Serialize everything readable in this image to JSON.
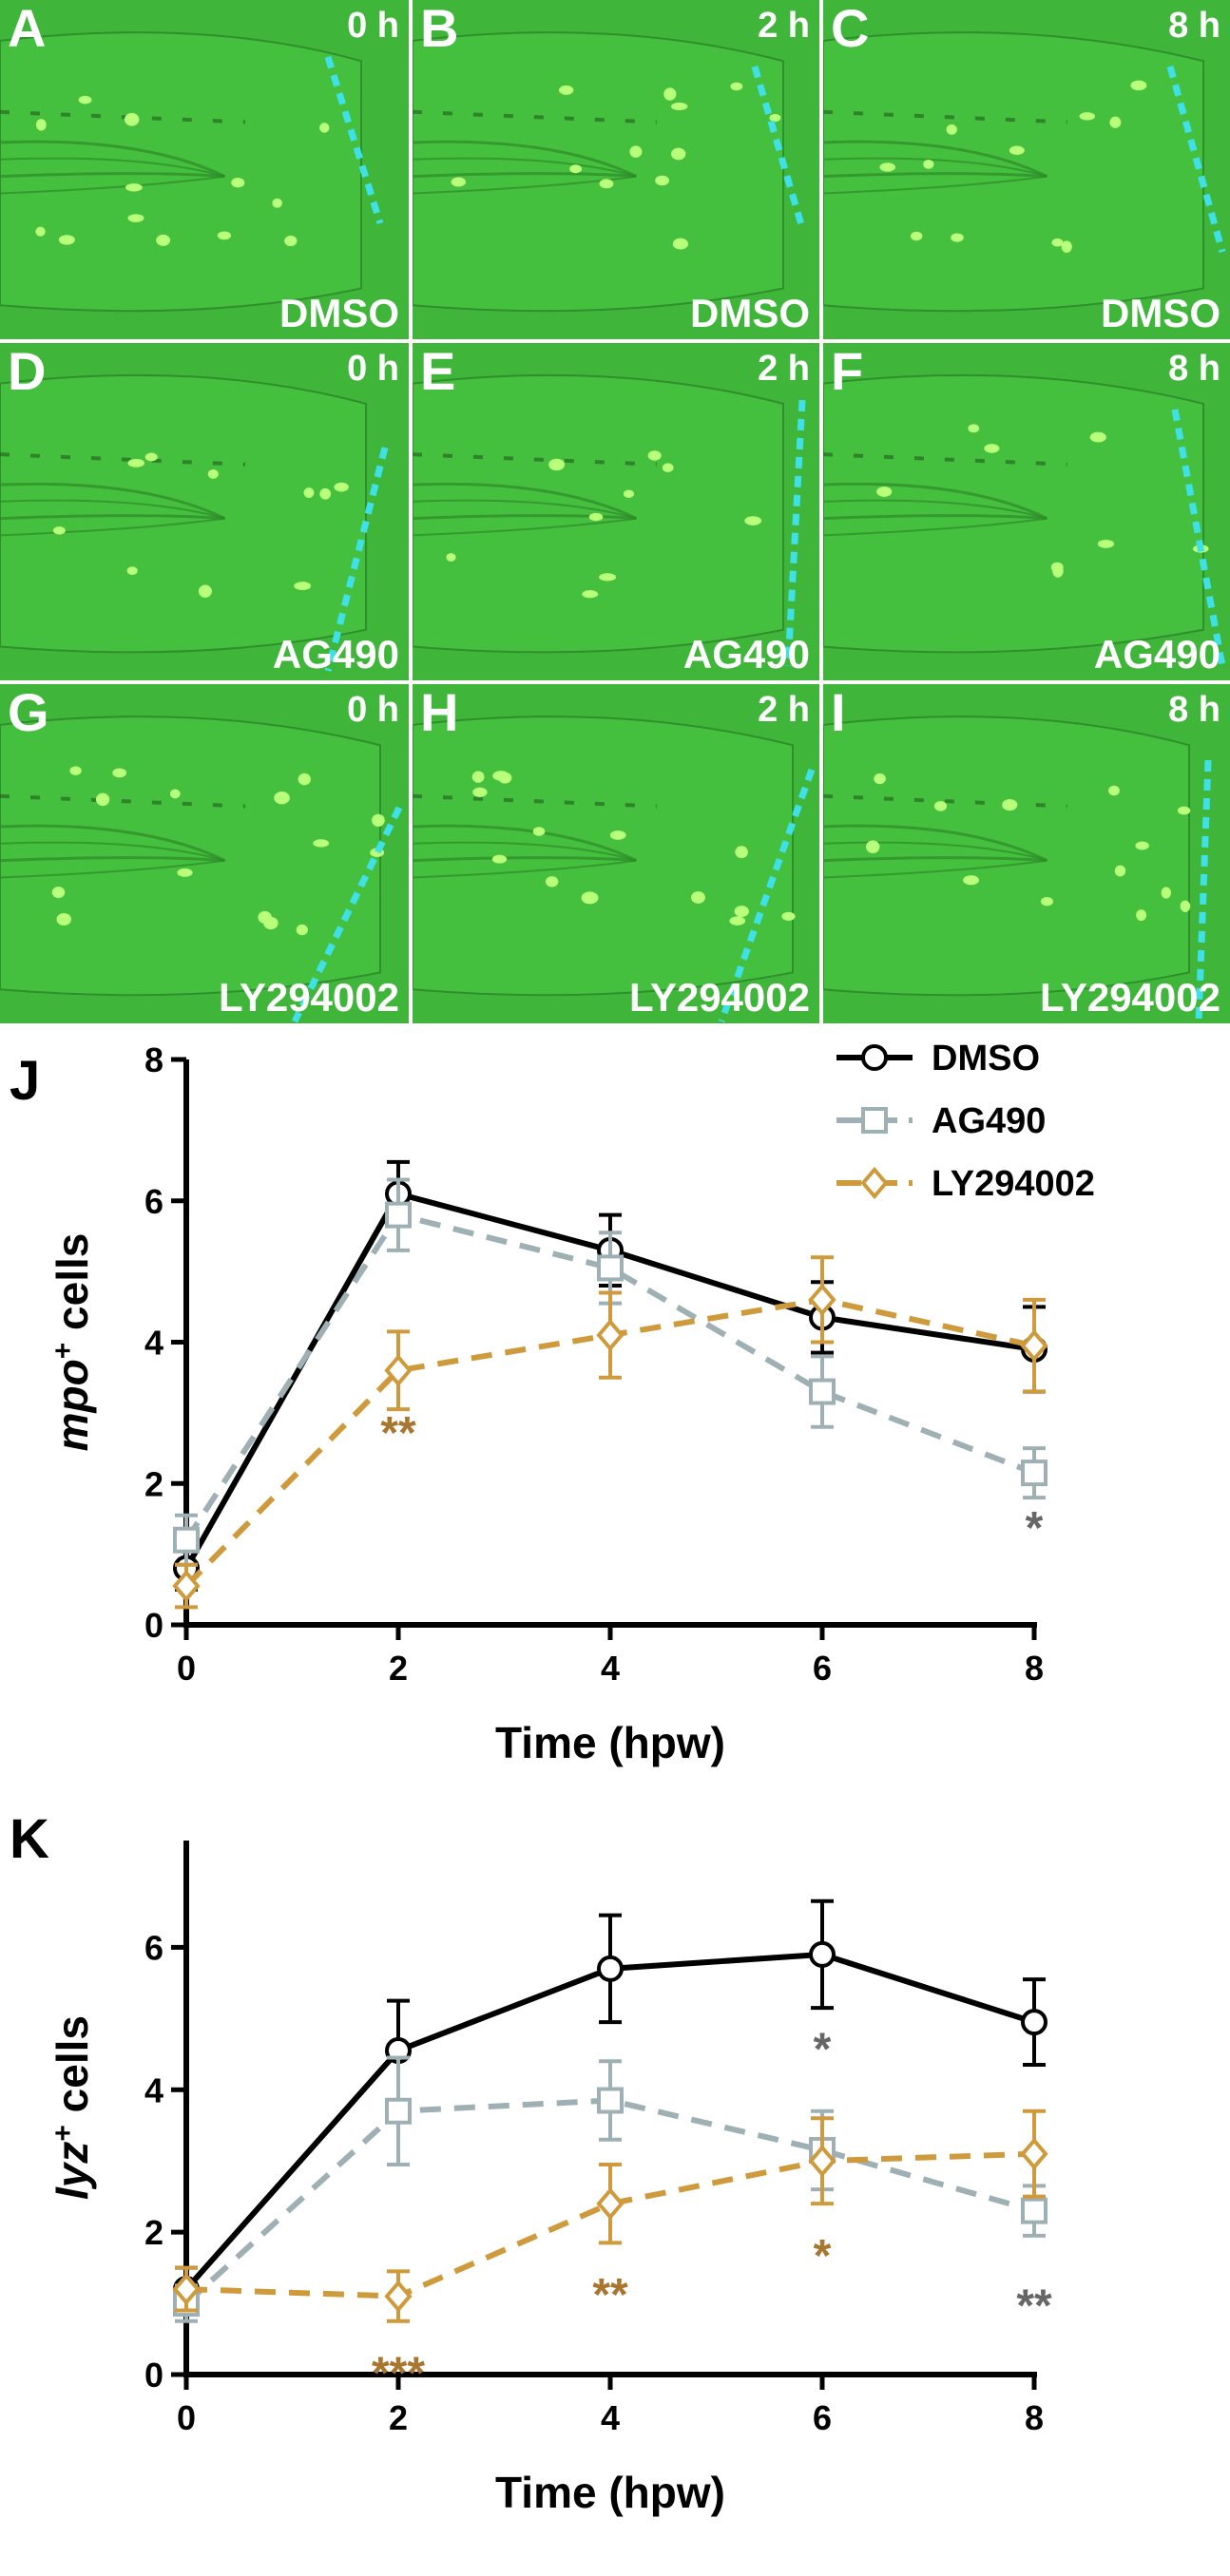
{
  "panels": [
    {
      "letter": "A",
      "time": "0 h",
      "treatment": "DMSO"
    },
    {
      "letter": "B",
      "time": "2 h",
      "treatment": "DMSO"
    },
    {
      "letter": "C",
      "time": "8 h",
      "treatment": "DMSO"
    },
    {
      "letter": "D",
      "time": "0 h",
      "treatment": "AG490"
    },
    {
      "letter": "E",
      "time": "2 h",
      "treatment": "AG490"
    },
    {
      "letter": "F",
      "time": "8 h",
      "treatment": "AG490"
    },
    {
      "letter": "G",
      "time": "0 h",
      "treatment": "LY294002"
    },
    {
      "letter": "H",
      "time": "2 h",
      "treatment": "LY294002"
    },
    {
      "letter": "I",
      "time": "8 h",
      "treatment": "LY294002"
    }
  ],
  "colors": {
    "panel_bg": "#3fb63a",
    "wound_line": "#3fe0e6",
    "cells": "#b8ff7a",
    "dmso": "#000000",
    "ag490": "#9fb0b5",
    "ly294002": "#cf9a3c",
    "sig_ly": "#a9762f",
    "sig_ag": "#666666"
  },
  "chart_data": [
    {
      "panel_letter": "J",
      "type": "line",
      "ylabel_main": "mpo",
      "ylabel_sup": "+",
      "ylabel_rest": " cells",
      "xlabel": "Time (hpw)",
      "x": [
        0,
        2,
        4,
        6,
        8
      ],
      "xlim": [
        0,
        8
      ],
      "ylim": [
        0,
        8
      ],
      "yticks": [
        0,
        2,
        4,
        6,
        8
      ],
      "legend_position": "top-right",
      "series": [
        {
          "name": "DMSO",
          "values": [
            0.8,
            6.1,
            5.3,
            4.35,
            3.9
          ],
          "errors": [
            0.3,
            0.45,
            0.5,
            0.5,
            0.6
          ]
        },
        {
          "name": "AG490",
          "values": [
            1.2,
            5.8,
            5.05,
            3.3,
            2.15
          ],
          "errors": [
            0.35,
            0.5,
            0.5,
            0.5,
            0.35
          ]
        },
        {
          "name": "LY294002",
          "values": [
            0.55,
            3.6,
            4.1,
            4.6,
            3.95
          ],
          "errors": [
            0.3,
            0.55,
            0.6,
            0.6,
            0.65
          ]
        }
      ],
      "annotations": [
        {
          "x": 2,
          "y": 2.8,
          "text": "**",
          "series": "LY294002"
        },
        {
          "x": 8,
          "y": 1.45,
          "text": "*",
          "series": "AG490"
        }
      ]
    },
    {
      "panel_letter": "K",
      "type": "line",
      "ylabel_main": "lyz",
      "ylabel_sup": "+",
      "ylabel_rest": " cells",
      "xlabel": "Time (hpw)",
      "x": [
        0,
        2,
        4,
        6,
        8
      ],
      "xlim": [
        0,
        8
      ],
      "ylim": [
        0,
        7.5
      ],
      "yticks": [
        0,
        2,
        4,
        6
      ],
      "series": [
        {
          "name": "DMSO",
          "values": [
            1.2,
            4.55,
            5.7,
            5.9,
            4.95
          ],
          "errors": [
            0.3,
            0.7,
            0.75,
            0.75,
            0.6
          ]
        },
        {
          "name": "AG490",
          "values": [
            1.0,
            3.7,
            3.85,
            3.15,
            2.3
          ],
          "errors": [
            0.25,
            0.75,
            0.55,
            0.55,
            0.35
          ]
        },
        {
          "name": "LY294002",
          "values": [
            1.2,
            1.1,
            2.4,
            3.0,
            3.1
          ],
          "errors": [
            0.3,
            0.35,
            0.55,
            0.6,
            0.6
          ]
        }
      ],
      "annotations": [
        {
          "x": 2,
          "y": 0.1,
          "text": "***",
          "series": "LY294002"
        },
        {
          "x": 4,
          "y": 1.2,
          "text": "**",
          "series": "LY294002"
        },
        {
          "x": 6,
          "y": 1.75,
          "text": "*",
          "series": "LY294002"
        },
        {
          "x": 6,
          "y": 4.65,
          "text": "*",
          "series": "AG490"
        },
        {
          "x": 8,
          "y": 1.05,
          "text": "**",
          "series": "AG490"
        }
      ]
    }
  ]
}
